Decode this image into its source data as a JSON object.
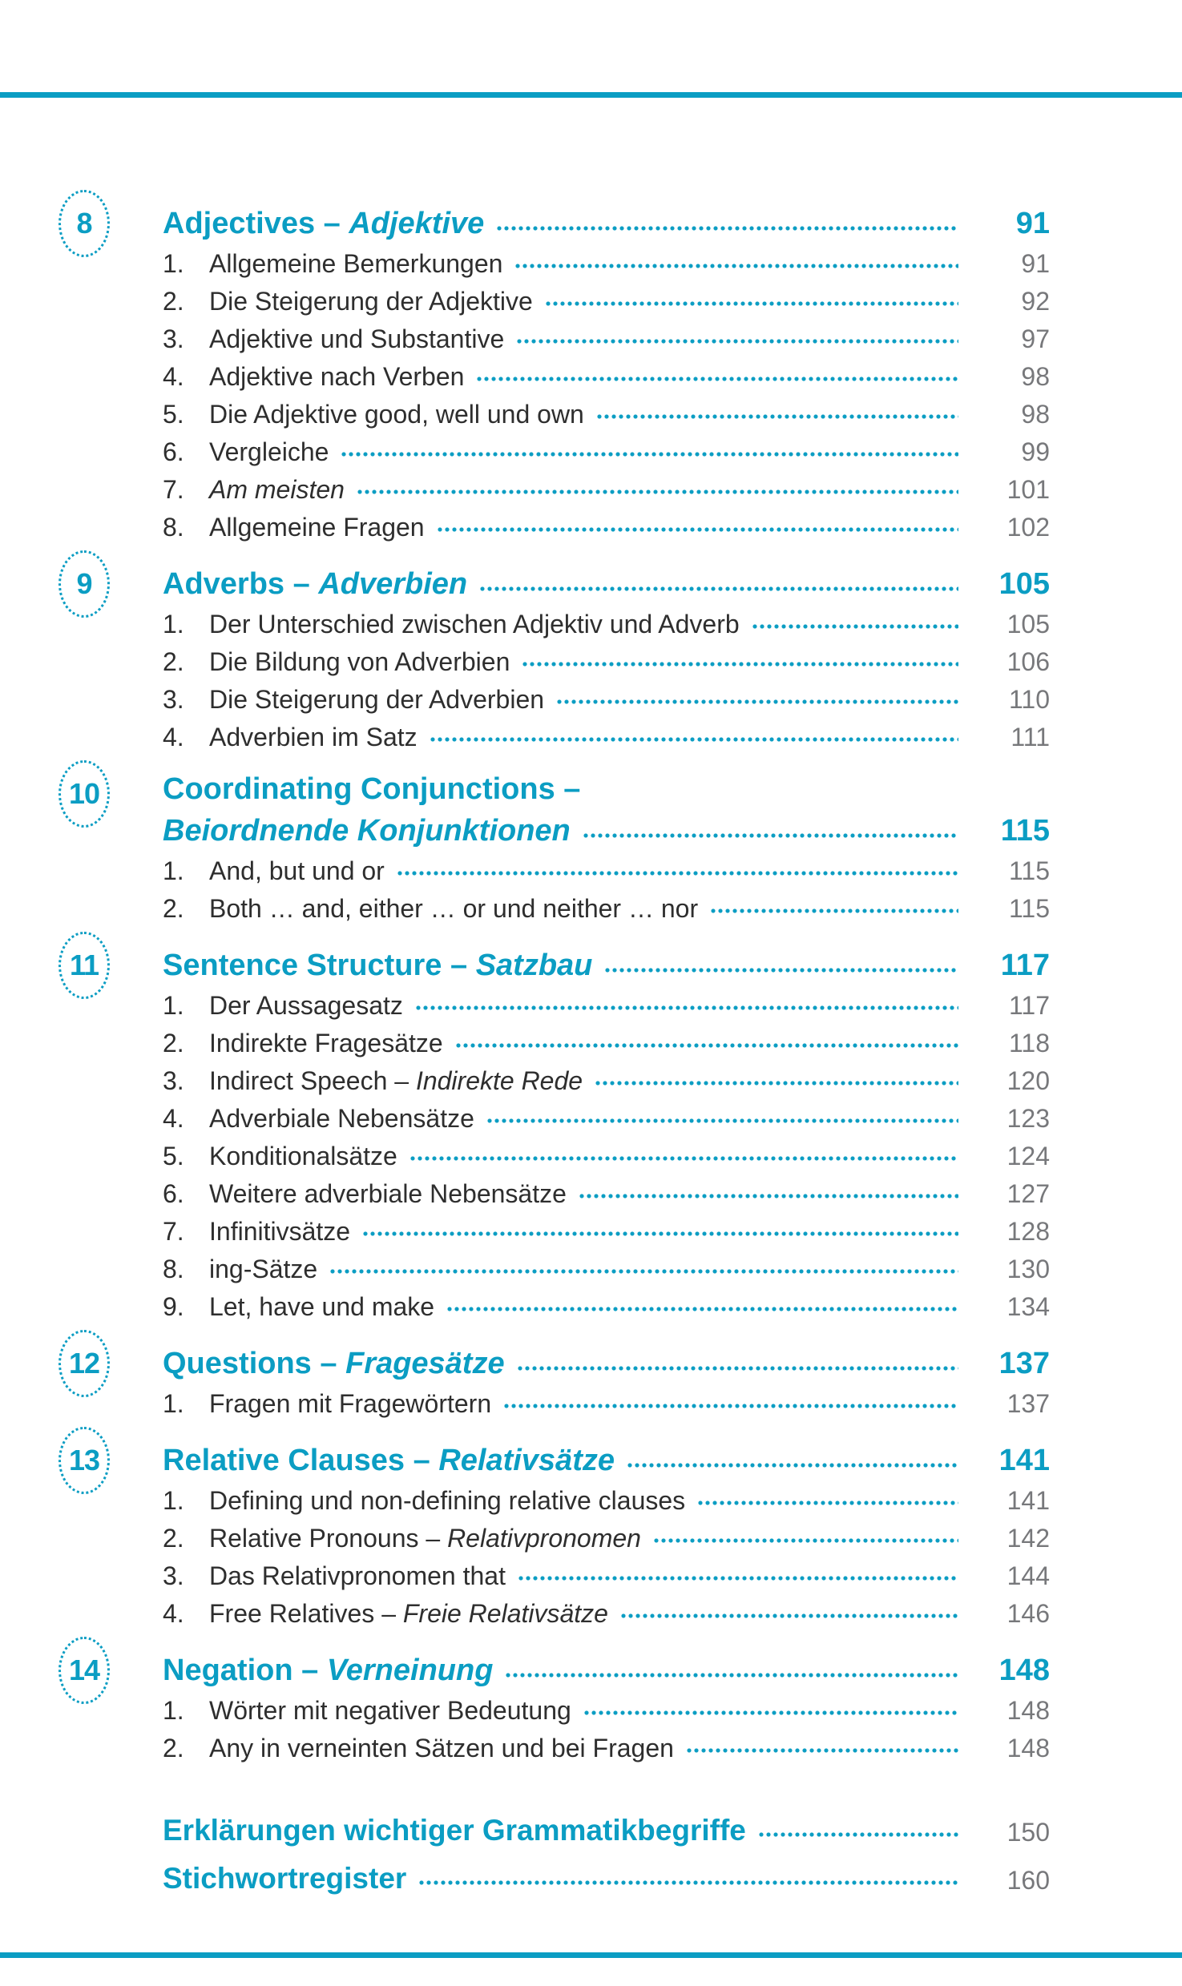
{
  "theme": {
    "teal": "#0b9dc3",
    "text_color": "#2e2e2e",
    "page_number_gray": "#77787b",
    "background": "#ffffff"
  },
  "toc": {
    "chapters": [
      {
        "number": "8",
        "title_en": "Adjectives – ",
        "title_de": "Adjektive",
        "page": "91",
        "two_line": false,
        "items": [
          {
            "num": "1.",
            "text": "Allgemeine Bemerkungen",
            "italic": "",
            "page": "91"
          },
          {
            "num": "2.",
            "text": "Die Steigerung der Adjektive",
            "italic": "",
            "page": "92"
          },
          {
            "num": "3.",
            "text": "Adjektive und Substantive",
            "italic": "",
            "page": "97"
          },
          {
            "num": "4.",
            "text": "Adjektive nach Verben",
            "italic": "",
            "page": "98"
          },
          {
            "num": "5.",
            "text": "Die Adjektive good, well und own",
            "italic": "",
            "page": "98"
          },
          {
            "num": "6.",
            "text": "Vergleiche",
            "italic": "",
            "page": "99"
          },
          {
            "num": "7.",
            "text": "",
            "italic": "Am meisten",
            "page": "101"
          },
          {
            "num": "8.",
            "text": "Allgemeine Fragen",
            "italic": "",
            "page": "102"
          }
        ]
      },
      {
        "number": "9",
        "title_en": "Adverbs – ",
        "title_de": "Adverbien",
        "page": "105",
        "two_line": false,
        "items": [
          {
            "num": "1.",
            "text": "Der Unterschied zwischen Adjektiv und Adverb",
            "italic": "",
            "page": "105"
          },
          {
            "num": "2.",
            "text": "Die Bildung von Adverbien",
            "italic": "",
            "page": "106"
          },
          {
            "num": "3.",
            "text": "Die Steigerung der Adverbien",
            "italic": "",
            "page": "110"
          },
          {
            "num": "4.",
            "text": "Adverbien im Satz",
            "italic": "",
            "page": "111"
          }
        ]
      },
      {
        "number": "10",
        "title_en": "Coordinating Conjunctions –",
        "title_de": "Beiordnende Konjunktionen",
        "page": "115",
        "two_line": true,
        "items": [
          {
            "num": "1.",
            "text": "And, but und or",
            "italic": "",
            "page": "115"
          },
          {
            "num": "2.",
            "text": "Both … and, either … or und neither … nor",
            "italic": "",
            "page": "115"
          }
        ]
      },
      {
        "number": "11",
        "title_en": "Sentence Structure – ",
        "title_de": "Satzbau",
        "page": "117",
        "two_line": false,
        "items": [
          {
            "num": "1.",
            "text": "Der Aussagesatz",
            "italic": "",
            "page": "117"
          },
          {
            "num": "2.",
            "text": "Indirekte Fragesätze",
            "italic": "",
            "page": "118"
          },
          {
            "num": "3.",
            "text": "Indirect Speech – ",
            "italic": "Indirekte Rede",
            "page": "120"
          },
          {
            "num": "4.",
            "text": "Adverbiale Nebensätze",
            "italic": "",
            "page": "123"
          },
          {
            "num": "5.",
            "text": "Konditionalsätze",
            "italic": "",
            "page": "124"
          },
          {
            "num": "6.",
            "text": "Weitere adverbiale Nebensätze",
            "italic": "",
            "page": "127"
          },
          {
            "num": "7.",
            "text": "Infinitivsätze",
            "italic": "",
            "page": "128"
          },
          {
            "num": "8.",
            "text": "ing-Sätze",
            "italic": "",
            "page": "130"
          },
          {
            "num": "9.",
            "text": "Let, have und make",
            "italic": "",
            "page": "134"
          }
        ]
      },
      {
        "number": "12",
        "title_en": "Questions – ",
        "title_de": "Fragesätze",
        "page": "137",
        "two_line": false,
        "items": [
          {
            "num": "1.",
            "text": "Fragen mit Fragewörtern",
            "italic": "",
            "page": "137"
          }
        ]
      },
      {
        "number": "13",
        "title_en": "Relative Clauses – ",
        "title_de": "Relativsätze",
        "page": "141",
        "two_line": false,
        "items": [
          {
            "num": "1.",
            "text": "Defining und non-defining relative clauses",
            "italic": "",
            "page": "141"
          },
          {
            "num": "2.",
            "text": "Relative Pronouns – ",
            "italic": "Relativpronomen",
            "page": "142"
          },
          {
            "num": "3.",
            "text": "Das Relativpronomen that",
            "italic": "",
            "page": "144"
          },
          {
            "num": "4.",
            "text": "Free Relatives – ",
            "italic": "Freie Relativsätze",
            "page": "146"
          }
        ]
      },
      {
        "number": "14",
        "title_en": "Negation – ",
        "title_de": "Verneinung",
        "page": "148",
        "two_line": false,
        "items": [
          {
            "num": "1.",
            "text": "Wörter mit negativer Bedeutung",
            "italic": "",
            "page": "148"
          },
          {
            "num": "2.",
            "text": "Any in verneinten Sätzen und bei Fragen",
            "italic": "",
            "page": "148"
          }
        ]
      }
    ],
    "extras": [
      {
        "text": "Erklärungen wichtiger Grammatikbegriffe",
        "page": "150"
      },
      {
        "text": "Stichwortregister",
        "page": "160"
      }
    ]
  }
}
